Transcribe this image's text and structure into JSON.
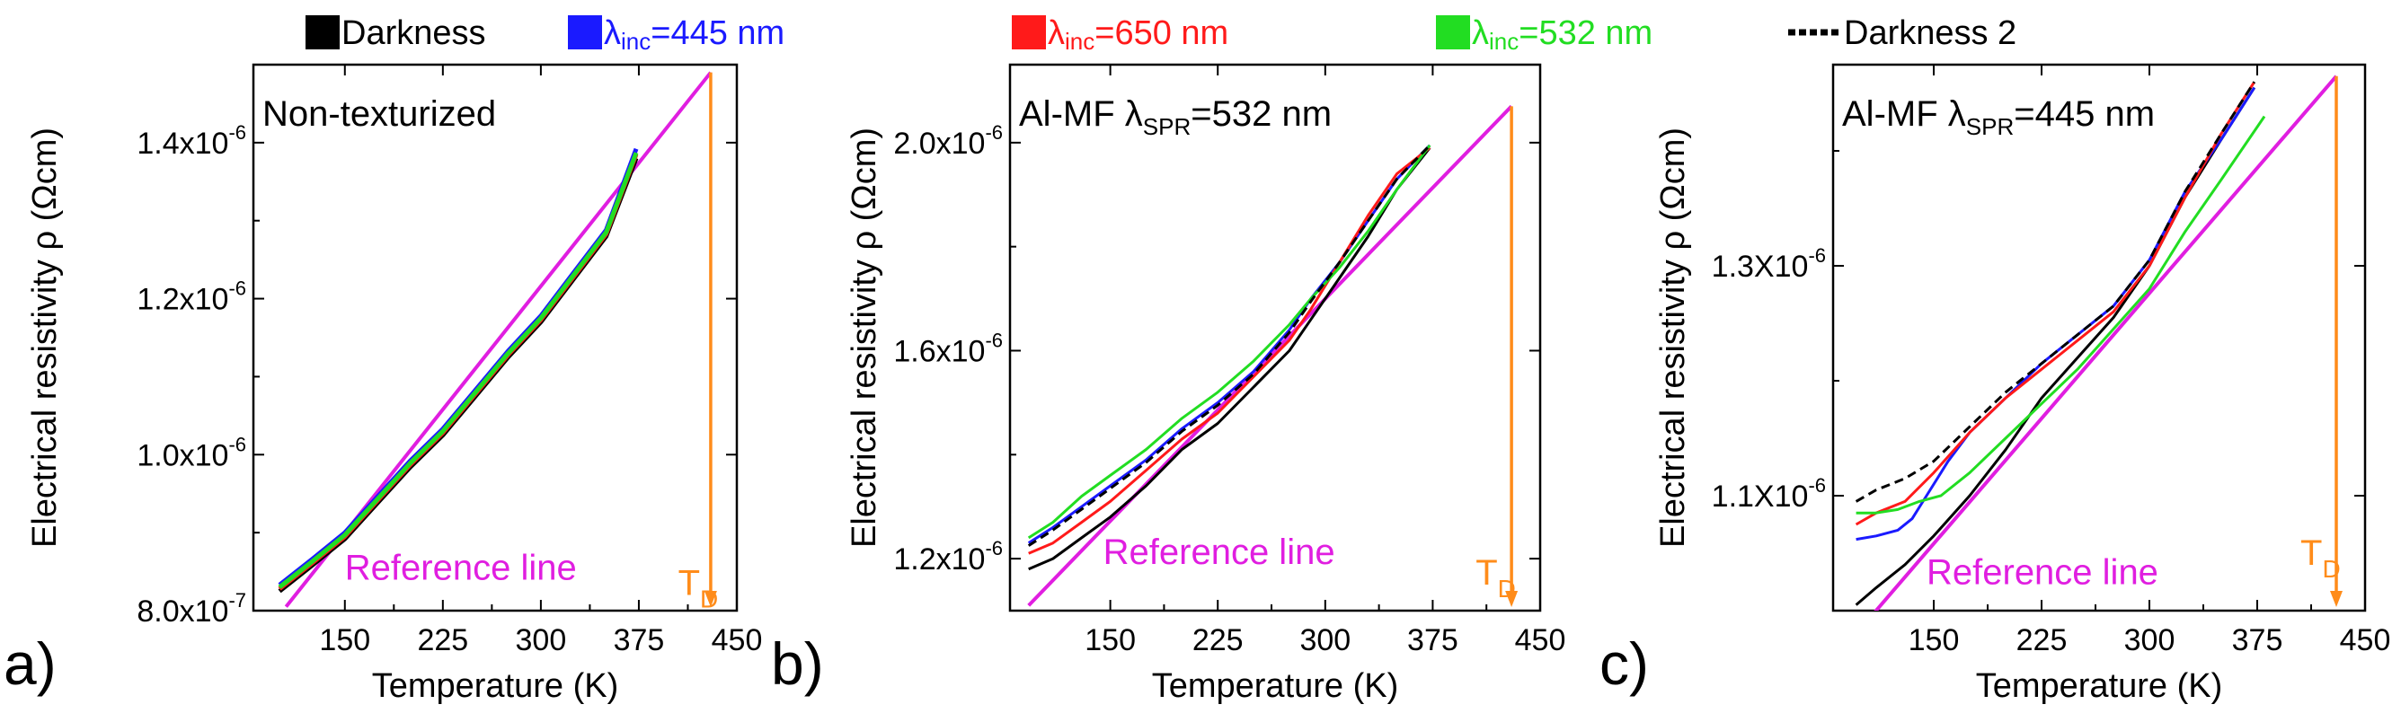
{
  "colors": {
    "darkness": "#000000",
    "l445": "#1a1aff",
    "l650": "#ff1a1a",
    "l532": "#22dd22",
    "darkness2": "#000000",
    "reference": "#e01ee0",
    "debye": "#ff8c1a"
  },
  "legend": [
    {
      "key": "darkness",
      "label": "Darkness",
      "style": "box"
    },
    {
      "key": "l445",
      "label_main": "λ",
      "label_sub": "inc",
      "label_rest": "=445 nm",
      "style": "box"
    },
    {
      "key": "l650",
      "label_main": "λ",
      "label_sub": "inc",
      "label_rest": "=650 nm",
      "style": "box"
    },
    {
      "key": "l532",
      "label_main": "λ",
      "label_sub": "inc",
      "label_rest": "=532 nm",
      "style": "box"
    },
    {
      "key": "darkness2",
      "label": "Darkness 2",
      "style": "dash"
    }
  ],
  "chart_data": [
    {
      "type": "line",
      "panel_label": "a)",
      "title": "Non-texturized",
      "title_sub": "",
      "title_rest": "",
      "xlabel": "Temperature (K)",
      "ylabel": "Electrical  resistivity   ρ (Ωcm)",
      "xlim": [
        80,
        450
      ],
      "ylim": [
        8e-07,
        1.5e-06
      ],
      "xticks": [
        {
          "v": 150,
          "label": "150"
        },
        {
          "v": 225,
          "label": "225"
        },
        {
          "v": 300,
          "label": "300"
        },
        {
          "v": 375,
          "label": "375"
        },
        {
          "v": 450,
          "label": "450"
        }
      ],
      "yticks": [
        {
          "v": 8e-07,
          "mant": "8.0x10",
          "exp": "-7"
        },
        {
          "v": 1e-06,
          "mant": "1.0x10",
          "exp": "-6"
        },
        {
          "v": 1.2e-06,
          "mant": "1.2x10",
          "exp": "-6"
        },
        {
          "v": 1.4e-06,
          "mant": "1.4x10",
          "exp": "-6"
        }
      ],
      "series": [
        {
          "name": "Darkness",
          "key": "darkness",
          "x": [
            100,
            125,
            150,
            175,
            200,
            225,
            250,
            275,
            300,
            325,
            350,
            373
          ],
          "y": [
            8.25e-07,
            8.58e-07,
            8.92e-07,
            9.38e-07,
            9.84e-07,
            1.025e-06,
            1.075e-06,
            1.125e-06,
            1.17e-06,
            1.225e-06,
            1.28e-06,
            1.38e-06
          ]
        },
        {
          "name": "λinc=445 nm",
          "key": "l445",
          "x": [
            100,
            125,
            150,
            175,
            200,
            225,
            250,
            275,
            300,
            325,
            350,
            373
          ],
          "y": [
            8.33e-07,
            8.66e-07,
            9e-07,
            9.46e-07,
            9.92e-07,
            1.033e-06,
            1.083e-06,
            1.133e-06,
            1.178e-06,
            1.233e-06,
            1.288e-06,
            1.392e-06
          ]
        },
        {
          "name": "λinc=650 nm",
          "key": "l650",
          "x": [
            100,
            125,
            150,
            175,
            200,
            225,
            250,
            275,
            300,
            325,
            350,
            373
          ],
          "y": [
            8.28e-07,
            8.61e-07,
            8.95e-07,
            9.41e-07,
            9.87e-07,
            1.028e-06,
            1.078e-06,
            1.128e-06,
            1.173e-06,
            1.228e-06,
            1.283e-06,
            1.385e-06
          ]
        },
        {
          "name": "λinc=532 nm",
          "key": "l532",
          "x": [
            100,
            125,
            150,
            175,
            200,
            225,
            250,
            275,
            300,
            325,
            350,
            373
          ],
          "y": [
            8.3e-07,
            8.63e-07,
            8.97e-07,
            9.43e-07,
            9.89e-07,
            1.03e-06,
            1.08e-06,
            1.13e-06,
            1.175e-06,
            1.23e-06,
            1.285e-06,
            1.387e-06
          ]
        }
      ],
      "reference_line": {
        "x": [
          105,
          430
        ],
        "y": [
          8.05e-07,
          1.49e-06
        ],
        "label": "Reference line",
        "label_at": [
          150,
          8.4e-07
        ]
      },
      "debye": {
        "x": 430,
        "y_top": 1.49e-06,
        "label": "T",
        "sub": "D",
        "label_at": [
          405,
          8.2e-07
        ]
      }
    },
    {
      "type": "line",
      "panel_label": "b)",
      "title": "Al-MF λ",
      "title_sub": "SPR",
      "title_rest": "=532 nm",
      "xlabel": "Temperature (K)",
      "ylabel": "Electrical  resistivity   ρ (Ωcm)",
      "xlim": [
        80,
        450
      ],
      "ylim": [
        1.1e-06,
        2.15e-06
      ],
      "xticks": [
        {
          "v": 150,
          "label": "150"
        },
        {
          "v": 225,
          "label": "225"
        },
        {
          "v": 300,
          "label": "300"
        },
        {
          "v": 375,
          "label": "375"
        },
        {
          "v": 450,
          "label": "450"
        }
      ],
      "yticks": [
        {
          "v": 1.2e-06,
          "mant": "1.2x10",
          "exp": "-6"
        },
        {
          "v": 1.6e-06,
          "mant": "1.6x10",
          "exp": "-6"
        },
        {
          "v": 2e-06,
          "mant": "2.0x10",
          "exp": "-6"
        }
      ],
      "series": [
        {
          "name": "Darkness",
          "key": "darkness",
          "x": [
            93,
            110,
            130,
            150,
            175,
            200,
            225,
            250,
            275,
            290,
            310,
            330,
            350,
            373
          ],
          "y": [
            1.18e-06,
            1.2e-06,
            1.24e-06,
            1.28e-06,
            1.34e-06,
            1.41e-06,
            1.46e-06,
            1.53e-06,
            1.6e-06,
            1.66e-06,
            1.74e-06,
            1.82e-06,
            1.91e-06,
            1.99e-06
          ]
        },
        {
          "name": "λinc=445 nm",
          "key": "l445",
          "x": [
            93,
            110,
            130,
            150,
            175,
            200,
            225,
            250,
            275,
            290,
            310,
            330,
            350,
            373
          ],
          "y": [
            1.23e-06,
            1.26e-06,
            1.3e-06,
            1.34e-06,
            1.39e-06,
            1.45e-06,
            1.5e-06,
            1.56e-06,
            1.64e-06,
            1.7e-06,
            1.77e-06,
            1.85e-06,
            1.93e-06,
            1.995e-06
          ]
        },
        {
          "name": "λinc=650 nm",
          "key": "l650",
          "x": [
            93,
            110,
            130,
            150,
            175,
            200,
            225,
            250,
            275,
            290,
            310,
            330,
            350,
            373
          ],
          "y": [
            1.21e-06,
            1.23e-06,
            1.27e-06,
            1.31e-06,
            1.37e-06,
            1.43e-06,
            1.48e-06,
            1.55e-06,
            1.62e-06,
            1.68e-06,
            1.77e-06,
            1.86e-06,
            1.94e-06,
            1.99e-06
          ]
        },
        {
          "name": "λinc=532 nm",
          "key": "l532",
          "x": [
            93,
            110,
            130,
            150,
            175,
            200,
            225,
            250,
            275,
            290,
            310,
            330,
            350,
            373
          ],
          "y": [
            1.24e-06,
            1.27e-06,
            1.32e-06,
            1.36e-06,
            1.41e-06,
            1.47e-06,
            1.52e-06,
            1.58e-06,
            1.65e-06,
            1.7e-06,
            1.76e-06,
            1.83e-06,
            1.91e-06,
            1.995e-06
          ]
        },
        {
          "name": "Darkness 2",
          "key": "darkness2",
          "dash": true,
          "x": [
            93,
            110,
            130,
            150,
            175,
            200,
            225,
            250,
            275,
            290,
            310,
            330,
            350,
            373
          ],
          "y": [
            1.225e-06,
            1.255e-06,
            1.295e-06,
            1.335e-06,
            1.385e-06,
            1.445e-06,
            1.495e-06,
            1.555e-06,
            1.635e-06,
            1.695e-06,
            1.77e-06,
            1.85e-06,
            1.93e-06,
            1.995e-06
          ]
        }
      ],
      "reference_line": {
        "x": [
          93,
          430
        ],
        "y": [
          1.11e-06,
          2.07e-06
        ],
        "label": "Reference line",
        "label_at": [
          145,
          1.19e-06
        ]
      },
      "debye": {
        "x": 430,
        "y_top": 2.07e-06,
        "label": "T",
        "sub": "D",
        "label_at": [
          405,
          1.15e-06
        ]
      }
    },
    {
      "type": "line",
      "panel_label": "c)",
      "title": "Al-MF λ",
      "title_sub": "SPR",
      "title_rest": "=445 nm",
      "xlabel": "Temperature (K)",
      "ylabel": "Electrical resistivity  ρ (Ωcm)",
      "xlim": [
        80,
        450
      ],
      "ylim": [
        1e-06,
        1.475e-06
      ],
      "xticks": [
        {
          "v": 150,
          "label": "150"
        },
        {
          "v": 225,
          "label": "225"
        },
        {
          "v": 300,
          "label": "300"
        },
        {
          "v": 375,
          "label": "375"
        },
        {
          "v": 450,
          "label": "450"
        }
      ],
      "yticks": [
        {
          "v": 1.1e-06,
          "mant": "1.1X10",
          "exp": "-6"
        },
        {
          "v": 1.3e-06,
          "mant": "1.3X10",
          "exp": "-6"
        }
      ],
      "series": [
        {
          "name": "Darkness",
          "key": "darkness",
          "x": [
            96,
            110,
            130,
            150,
            175,
            200,
            225,
            250,
            275,
            300,
            325,
            350,
            373
          ],
          "y": [
            1.005e-06,
            1.02e-06,
            1.04e-06,
            1.065e-06,
            1.1e-06,
            1.14e-06,
            1.185e-06,
            1.22e-06,
            1.255e-06,
            1.3e-06,
            1.36e-06,
            1.41e-06,
            1.455e-06
          ]
        },
        {
          "name": "λinc=445 nm",
          "key": "l445",
          "x": [
            96,
            110,
            125,
            135,
            145,
            160,
            175,
            200,
            225,
            250,
            275,
            300,
            325,
            350,
            373
          ],
          "y": [
            1.062e-06,
            1.065e-06,
            1.07e-06,
            1.08e-06,
            1.1e-06,
            1.13e-06,
            1.155e-06,
            1.185e-06,
            1.215e-06,
            1.24e-06,
            1.265e-06,
            1.305e-06,
            1.365e-06,
            1.41e-06,
            1.455e-06
          ]
        },
        {
          "name": "λinc=650 nm",
          "key": "l650",
          "x": [
            96,
            110,
            130,
            150,
            175,
            200,
            225,
            250,
            275,
            300,
            325,
            350,
            373
          ],
          "y": [
            1.075e-06,
            1.085e-06,
            1.095e-06,
            1.12e-06,
            1.155e-06,
            1.185e-06,
            1.21e-06,
            1.235e-06,
            1.26e-06,
            1.3e-06,
            1.36e-06,
            1.415e-06,
            1.46e-06
          ]
        },
        {
          "name": "λinc=532 nm",
          "key": "l532",
          "x": [
            96,
            110,
            125,
            140,
            155,
            175,
            200,
            225,
            250,
            275,
            300,
            325,
            350,
            380
          ],
          "y": [
            1.085e-06,
            1.085e-06,
            1.088e-06,
            1.095e-06,
            1.1e-06,
            1.12e-06,
            1.15e-06,
            1.18e-06,
            1.21e-06,
            1.245e-06,
            1.28e-06,
            1.33e-06,
            1.375e-06,
            1.43e-06
          ]
        },
        {
          "name": "Darkness 2",
          "key": "darkness2",
          "dash": true,
          "x": [
            96,
            110,
            130,
            150,
            175,
            200,
            225,
            250,
            275,
            300,
            325,
            350,
            373
          ],
          "y": [
            1.095e-06,
            1.105e-06,
            1.115e-06,
            1.13e-06,
            1.16e-06,
            1.19e-06,
            1.215e-06,
            1.24e-06,
            1.265e-06,
            1.305e-06,
            1.365e-06,
            1.415e-06,
            1.46e-06
          ]
        }
      ],
      "reference_line": {
        "x": [
          103,
          430
        ],
        "y": [
          9.9e-07,
          1.465e-06
        ],
        "label": "Reference line",
        "label_at": [
          145,
          1.023e-06
        ]
      },
      "debye": {
        "x": 430,
        "y_top": 1.465e-06,
        "label": "T",
        "sub": "D",
        "label_at": [
          405,
          1.04e-06
        ]
      }
    }
  ]
}
